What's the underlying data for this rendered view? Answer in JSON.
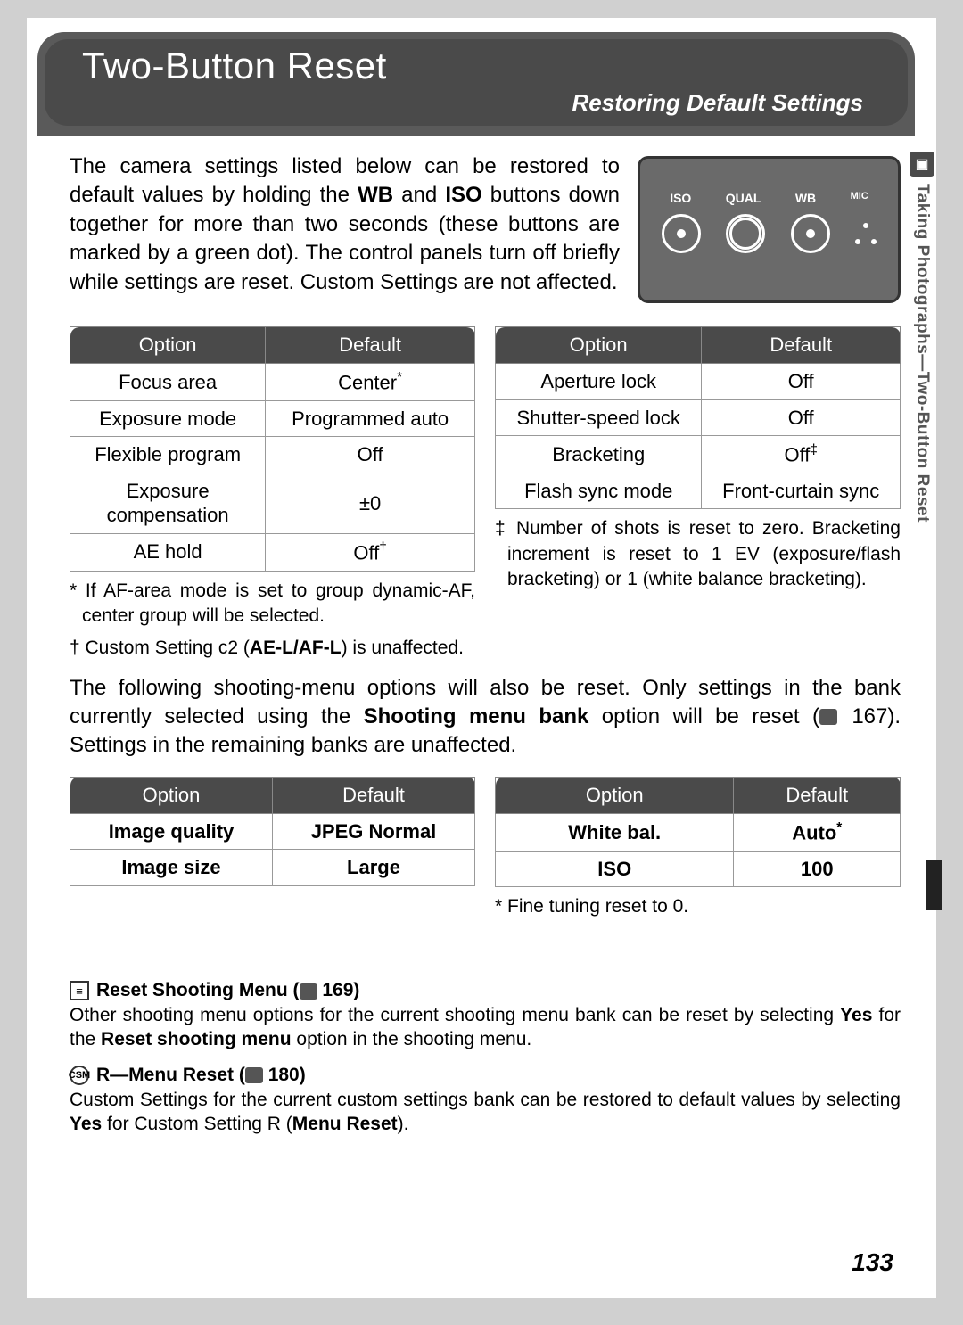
{
  "header": {
    "title": "Two-Button Reset",
    "subtitle": "Restoring Default Settings"
  },
  "intro": "The camera settings listed below can be restored to default values by holding the WB and ISO buttons down together for more than two seconds (these buttons are marked by a green dot). The control panels turn off briefly while settings are reset. Custom Settings are not affected.",
  "camera_labels": [
    "ISO",
    "QUAL",
    "WB",
    "MIC"
  ],
  "tableL": {
    "headers": [
      "Option",
      "Default"
    ],
    "rows": [
      [
        "Focus area",
        "Center*"
      ],
      [
        "Exposure mode",
        "Programmed auto"
      ],
      [
        "Flexible program",
        "Off"
      ],
      [
        "Exposure compensation",
        "±0"
      ],
      [
        "AE hold",
        "Off†"
      ]
    ]
  },
  "tableR": {
    "headers": [
      "Option",
      "Default"
    ],
    "rows": [
      [
        "Aperture lock",
        "Off"
      ],
      [
        "Shutter-speed lock",
        "Off"
      ],
      [
        "Bracketing",
        "Off‡"
      ],
      [
        "Flash sync mode",
        "Front-curtain sync"
      ]
    ]
  },
  "fn_left1": "* If AF-area mode is set to group dynamic-AF, center group will be selected.",
  "fn_left2_pre": "† Custom Setting c2 (",
  "fn_left2_bold": "AE-L/AF-L",
  "fn_left2_post": ") is unaffected.",
  "fn_right1": "‡ Number of shots is reset to zero. Bracketing increment is reset to 1 EV (exposure/flash bracketing) or 1 (white balance bracketing).",
  "mid_pre": "The following shooting-menu options will also be reset. Only settings in the bank currently selected using the ",
  "mid_bold": "Shooting menu bank",
  "mid_post1": " option will be reset (",
  "mid_pageref": " 167). Settings in the remaining banks are unaffected.",
  "table2L": {
    "headers": [
      "Option",
      "Default"
    ],
    "rows": [
      [
        "Image quality",
        "JPEG Normal"
      ],
      [
        "Image size",
        "Large"
      ]
    ]
  },
  "table2R": {
    "headers": [
      "Option",
      "Default"
    ],
    "rows": [
      [
        "White bal.",
        "Auto*"
      ],
      [
        "ISO",
        "100"
      ]
    ]
  },
  "fn_fine": "* Fine tuning reset to 0.",
  "info1": {
    "title_pre": "Reset Shooting Menu (",
    "title_ref": " 169)",
    "body_pre": "Other shooting menu options for the current shooting menu bank can be reset by selecting ",
    "body_bold1": "Yes",
    "body_mid": " for the ",
    "body_bold2": "Reset shooting menu",
    "body_post": " option in the shooting menu."
  },
  "info2": {
    "title_pre": "R—Menu Reset (",
    "title_ref": " 180)",
    "body_pre": "Custom Settings for the current custom settings bank can be restored to default values by selecting ",
    "body_bold1": "Yes",
    "body_mid": " for Custom Setting R (",
    "body_bold2": "Menu Reset",
    "body_post": ")."
  },
  "side_tab": "Taking Photographs—Two-Button Reset",
  "page_num": "133"
}
